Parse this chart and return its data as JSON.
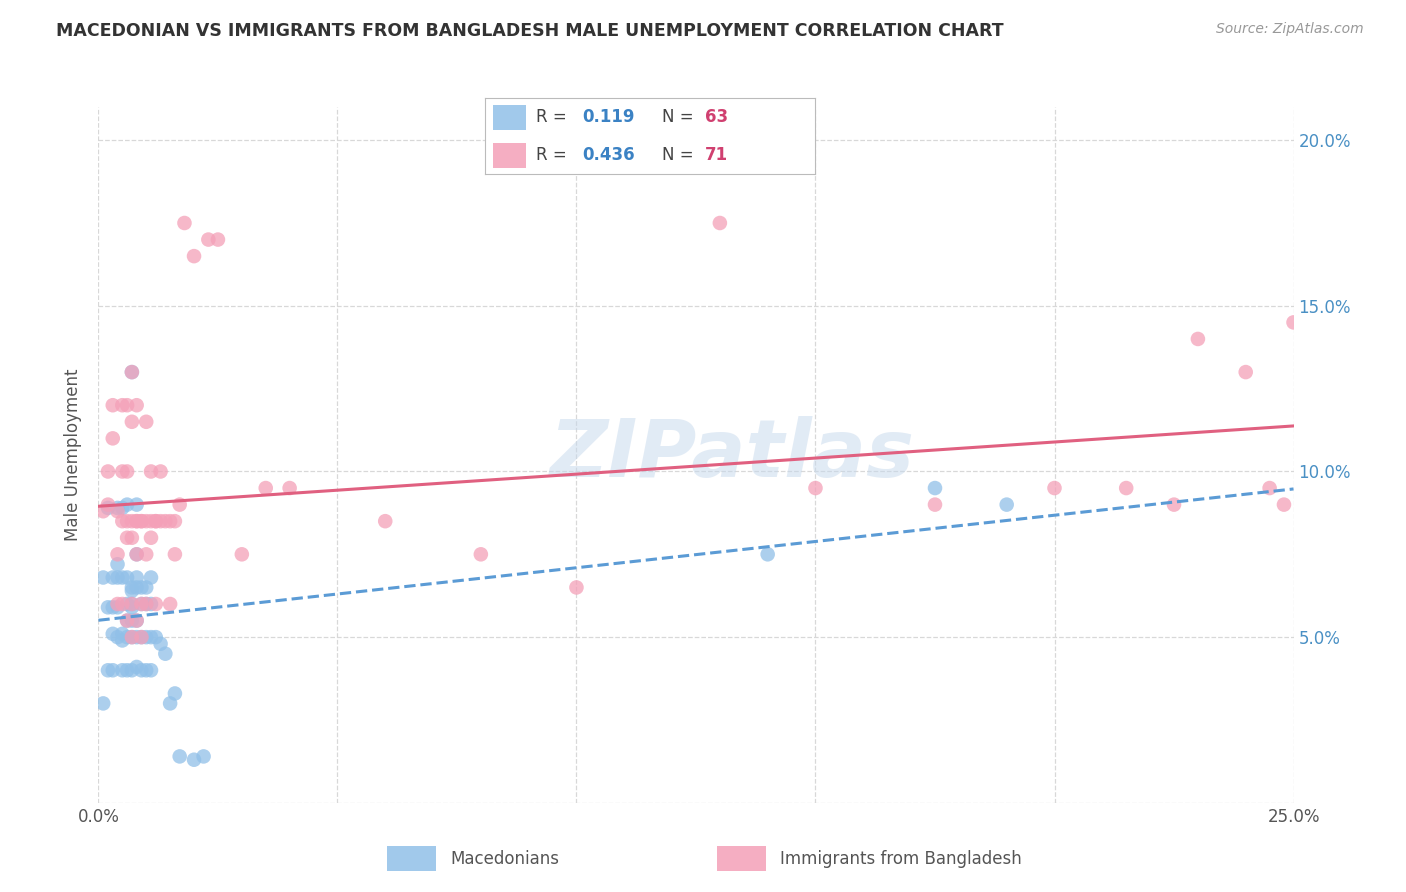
{
  "title": "MACEDONIAN VS IMMIGRANTS FROM BANGLADESH MALE UNEMPLOYMENT CORRELATION CHART",
  "source": "Source: ZipAtlas.com",
  "ylabel": "Male Unemployment",
  "xlim": [
    0.0,
    0.25
  ],
  "ylim": [
    0.0,
    0.21
  ],
  "macedonian_color": "#91c0e8",
  "bangladesh_color": "#f4a0b8",
  "macedonian_R": "0.119",
  "macedonian_N": "63",
  "bangladesh_R": "0.436",
  "bangladesh_N": "71",
  "watermark": "ZIPatlas",
  "background_color": "#ffffff",
  "grid_color": "#d8d8d8",
  "macedonian_line_color": "#5b9bd5",
  "bangladesh_line_color": "#e06080",
  "macedonian_scatter": [
    [
      0.001,
      0.068
    ],
    [
      0.001,
      0.03
    ],
    [
      0.002,
      0.089
    ],
    [
      0.002,
      0.059
    ],
    [
      0.002,
      0.04
    ],
    [
      0.003,
      0.068
    ],
    [
      0.003,
      0.059
    ],
    [
      0.003,
      0.051
    ],
    [
      0.003,
      0.04
    ],
    [
      0.004,
      0.089
    ],
    [
      0.004,
      0.072
    ],
    [
      0.004,
      0.068
    ],
    [
      0.004,
      0.059
    ],
    [
      0.004,
      0.05
    ],
    [
      0.005,
      0.089
    ],
    [
      0.005,
      0.068
    ],
    [
      0.005,
      0.051
    ],
    [
      0.005,
      0.049
    ],
    [
      0.005,
      0.04
    ],
    [
      0.006,
      0.09
    ],
    [
      0.006,
      0.068
    ],
    [
      0.006,
      0.06
    ],
    [
      0.006,
      0.055
    ],
    [
      0.006,
      0.05
    ],
    [
      0.006,
      0.04
    ],
    [
      0.007,
      0.13
    ],
    [
      0.007,
      0.065
    ],
    [
      0.007,
      0.064
    ],
    [
      0.007,
      0.06
    ],
    [
      0.007,
      0.059
    ],
    [
      0.007,
      0.055
    ],
    [
      0.007,
      0.05
    ],
    [
      0.007,
      0.04
    ],
    [
      0.008,
      0.09
    ],
    [
      0.008,
      0.075
    ],
    [
      0.008,
      0.068
    ],
    [
      0.008,
      0.065
    ],
    [
      0.008,
      0.055
    ],
    [
      0.008,
      0.05
    ],
    [
      0.008,
      0.041
    ],
    [
      0.009,
      0.065
    ],
    [
      0.009,
      0.06
    ],
    [
      0.009,
      0.05
    ],
    [
      0.009,
      0.04
    ],
    [
      0.01,
      0.065
    ],
    [
      0.01,
      0.06
    ],
    [
      0.01,
      0.05
    ],
    [
      0.01,
      0.04
    ],
    [
      0.011,
      0.068
    ],
    [
      0.011,
      0.06
    ],
    [
      0.011,
      0.05
    ],
    [
      0.011,
      0.04
    ],
    [
      0.012,
      0.05
    ],
    [
      0.013,
      0.048
    ],
    [
      0.014,
      0.045
    ],
    [
      0.015,
      0.03
    ],
    [
      0.016,
      0.033
    ],
    [
      0.017,
      0.014
    ],
    [
      0.02,
      0.013
    ],
    [
      0.022,
      0.014
    ],
    [
      0.14,
      0.075
    ],
    [
      0.175,
      0.095
    ],
    [
      0.19,
      0.09
    ]
  ],
  "bangladesh_scatter": [
    [
      0.001,
      0.088
    ],
    [
      0.002,
      0.1
    ],
    [
      0.002,
      0.09
    ],
    [
      0.003,
      0.12
    ],
    [
      0.003,
      0.11
    ],
    [
      0.004,
      0.088
    ],
    [
      0.004,
      0.075
    ],
    [
      0.004,
      0.06
    ],
    [
      0.005,
      0.12
    ],
    [
      0.005,
      0.1
    ],
    [
      0.005,
      0.085
    ],
    [
      0.005,
      0.06
    ],
    [
      0.006,
      0.12
    ],
    [
      0.006,
      0.1
    ],
    [
      0.006,
      0.085
    ],
    [
      0.006,
      0.08
    ],
    [
      0.006,
      0.055
    ],
    [
      0.007,
      0.13
    ],
    [
      0.007,
      0.115
    ],
    [
      0.007,
      0.085
    ],
    [
      0.007,
      0.08
    ],
    [
      0.007,
      0.06
    ],
    [
      0.007,
      0.05
    ],
    [
      0.008,
      0.12
    ],
    [
      0.008,
      0.085
    ],
    [
      0.008,
      0.085
    ],
    [
      0.008,
      0.075
    ],
    [
      0.008,
      0.055
    ],
    [
      0.009,
      0.085
    ],
    [
      0.009,
      0.085
    ],
    [
      0.009,
      0.06
    ],
    [
      0.009,
      0.05
    ],
    [
      0.01,
      0.115
    ],
    [
      0.01,
      0.085
    ],
    [
      0.01,
      0.075
    ],
    [
      0.01,
      0.06
    ],
    [
      0.011,
      0.1
    ],
    [
      0.011,
      0.085
    ],
    [
      0.011,
      0.08
    ],
    [
      0.012,
      0.085
    ],
    [
      0.012,
      0.085
    ],
    [
      0.012,
      0.06
    ],
    [
      0.013,
      0.1
    ],
    [
      0.013,
      0.085
    ],
    [
      0.014,
      0.085
    ],
    [
      0.015,
      0.085
    ],
    [
      0.015,
      0.06
    ],
    [
      0.016,
      0.085
    ],
    [
      0.016,
      0.075
    ],
    [
      0.017,
      0.09
    ],
    [
      0.018,
      0.175
    ],
    [
      0.02,
      0.165
    ],
    [
      0.023,
      0.17
    ],
    [
      0.025,
      0.17
    ],
    [
      0.03,
      0.075
    ],
    [
      0.035,
      0.095
    ],
    [
      0.04,
      0.095
    ],
    [
      0.06,
      0.085
    ],
    [
      0.08,
      0.075
    ],
    [
      0.1,
      0.065
    ],
    [
      0.13,
      0.175
    ],
    [
      0.15,
      0.095
    ],
    [
      0.175,
      0.09
    ],
    [
      0.2,
      0.095
    ],
    [
      0.215,
      0.095
    ],
    [
      0.225,
      0.09
    ],
    [
      0.23,
      0.14
    ],
    [
      0.24,
      0.13
    ],
    [
      0.245,
      0.095
    ],
    [
      0.248,
      0.09
    ],
    [
      0.25,
      0.145
    ]
  ]
}
